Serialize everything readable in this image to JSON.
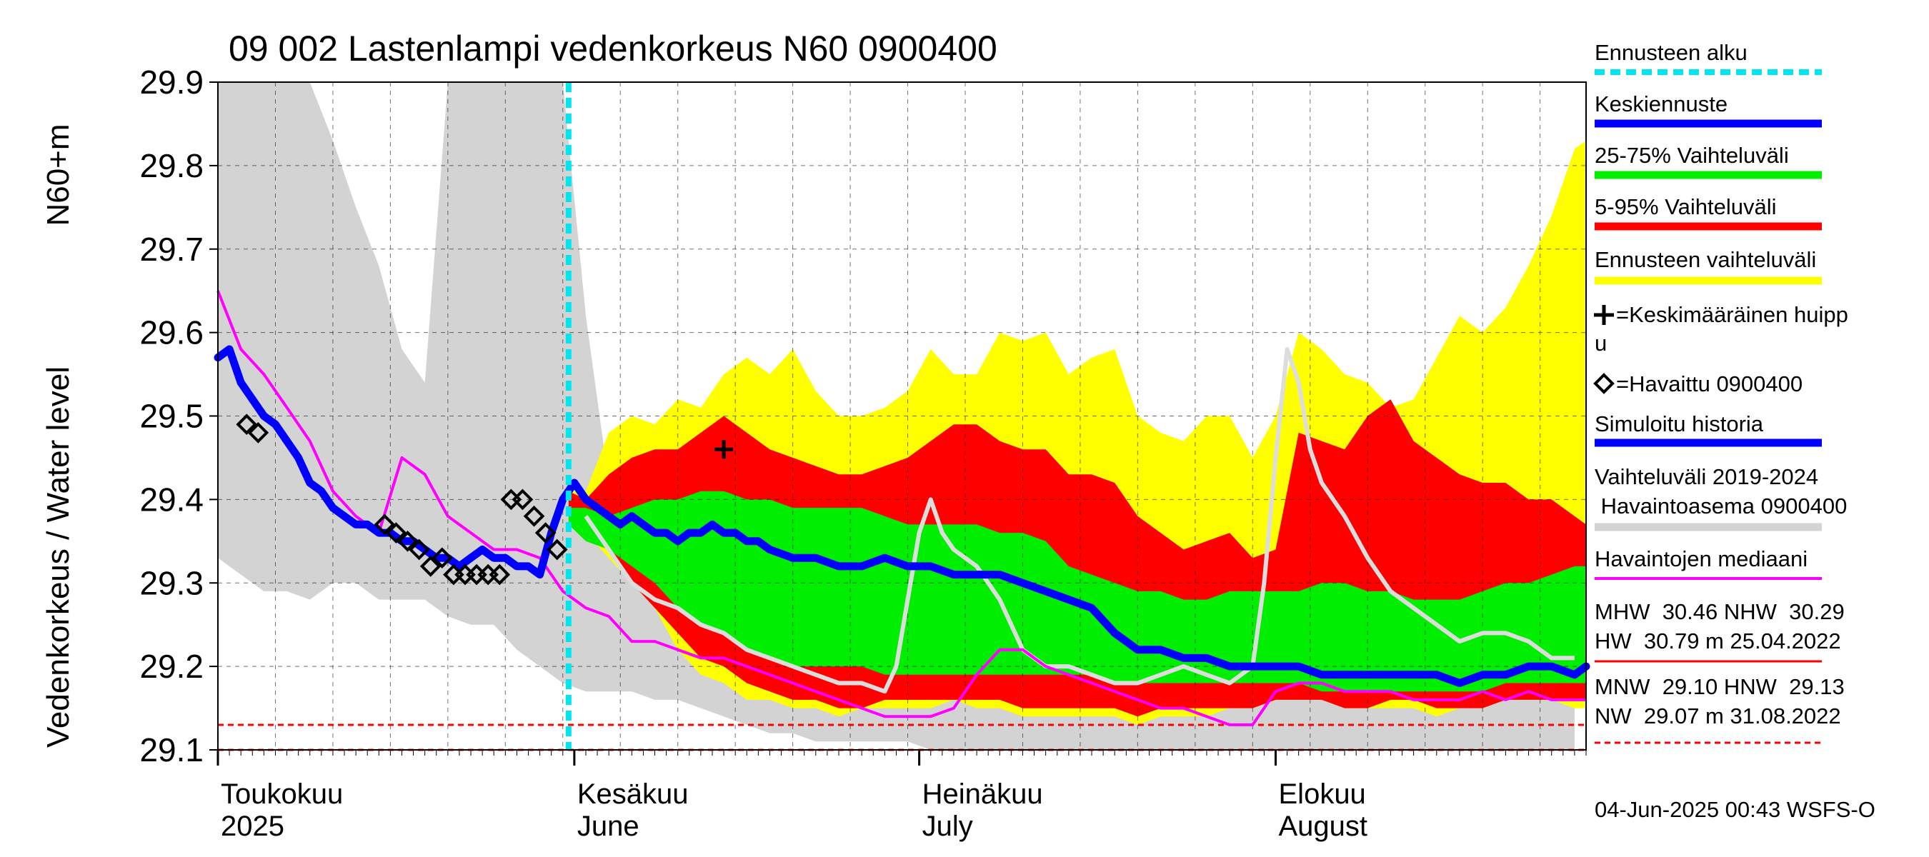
{
  "chart_data": {
    "type": "area",
    "title": "09 002 Lastenlampi vedenkorkeus N60 0900400",
    "ylabel_left": "Vedenkorkeus / Water level",
    "ylabel_right": "N60+m",
    "ylim": [
      29.1,
      29.9
    ],
    "yticks": [
      29.1,
      29.2,
      29.3,
      29.4,
      29.5,
      29.6,
      29.7,
      29.8,
      29.9
    ],
    "ytick_labels": [
      "29.1",
      "29.2",
      "29.3",
      "29.4",
      "29.5",
      "29.6",
      "29.7",
      "29.8",
      "29.9"
    ],
    "xlim": [
      0,
      119
    ],
    "x_unit": "days since 1 May 2025",
    "months": [
      {
        "label1": "Toukokuu",
        "label2": "2025",
        "x": 0
      },
      {
        "label1": "Kesäkuu",
        "label2": "June",
        "x": 31
      },
      {
        "label1": "Heinäkuu",
        "label2": "July",
        "x": 61
      },
      {
        "label1": "Elokuu",
        "label2": "August",
        "x": 92
      }
    ],
    "forecast_start_x": 30.5,
    "bands": {
      "grey": {
        "x": [
          0,
          2,
          4,
          6,
          8,
          10,
          12,
          14,
          16,
          18,
          20,
          22,
          24,
          26,
          28,
          30,
          32,
          34,
          36,
          38,
          40,
          42,
          44,
          46,
          48,
          50,
          52,
          54,
          56,
          58,
          60,
          62,
          64,
          66,
          68,
          70,
          72,
          74,
          76,
          78,
          80,
          82,
          84,
          86,
          88,
          90,
          92,
          94,
          96,
          98,
          100,
          102,
          104,
          106,
          108,
          110,
          112,
          114,
          116,
          118
        ],
        "upper": [
          29.9,
          29.9,
          29.9,
          29.9,
          29.9,
          29.83,
          29.75,
          29.68,
          29.58,
          29.54,
          29.9,
          29.9,
          29.9,
          29.9,
          29.9,
          29.9,
          29.62,
          29.42,
          29.36,
          29.34,
          29.32,
          29.3,
          29.28,
          29.27,
          29.26,
          29.25,
          29.23,
          29.22,
          29.22,
          29.21,
          29.2,
          29.2,
          29.19,
          29.19,
          29.19,
          29.18,
          29.18,
          29.18,
          29.17,
          29.17,
          29.17,
          29.17,
          29.17,
          29.17,
          29.17,
          29.17,
          29.17,
          29.17,
          29.17,
          29.17,
          29.17,
          29.17,
          29.17,
          29.17,
          29.17,
          29.17,
          29.17,
          29.17,
          29.17,
          29.17
        ],
        "lower": [
          29.33,
          29.31,
          29.29,
          29.29,
          29.28,
          29.3,
          29.3,
          29.28,
          29.28,
          29.28,
          29.26,
          29.25,
          29.25,
          29.22,
          29.2,
          29.18,
          29.17,
          29.17,
          29.17,
          29.16,
          29.16,
          29.15,
          29.14,
          29.13,
          29.12,
          29.12,
          29.11,
          29.11,
          29.11,
          29.11,
          29.11,
          29.1,
          29.1,
          29.1,
          29.1,
          29.1,
          29.1,
          29.1,
          29.1,
          29.1,
          29.1,
          29.1,
          29.1,
          29.1,
          29.1,
          29.1,
          29.1,
          29.1,
          29.1,
          29.1,
          29.1,
          29.1,
          29.1,
          29.1,
          29.1,
          29.1,
          29.1,
          29.1,
          29.1,
          29.1
        ]
      },
      "yellow": {
        "x": [
          30.5,
          32,
          34,
          36,
          38,
          40,
          42,
          44,
          46,
          48,
          50,
          52,
          54,
          56,
          58,
          60,
          62,
          64,
          66,
          68,
          70,
          72,
          74,
          76,
          78,
          80,
          82,
          84,
          86,
          88,
          90,
          92,
          94,
          96,
          98,
          100,
          102,
          104,
          106,
          108,
          110,
          112,
          114,
          116,
          118,
          119
        ],
        "upper": [
          29.42,
          29.41,
          29.48,
          29.5,
          29.49,
          29.52,
          29.51,
          29.55,
          29.57,
          29.55,
          29.58,
          29.53,
          29.5,
          29.5,
          29.51,
          29.53,
          29.58,
          29.55,
          29.55,
          29.6,
          29.59,
          29.6,
          29.55,
          29.57,
          29.58,
          29.5,
          29.48,
          29.47,
          29.5,
          29.5,
          29.45,
          29.5,
          29.6,
          29.58,
          29.55,
          29.54,
          29.51,
          29.52,
          29.57,
          29.62,
          29.6,
          29.63,
          29.68,
          29.74,
          29.82,
          29.83
        ],
        "lower": [
          29.39,
          29.36,
          29.33,
          29.3,
          29.27,
          29.22,
          29.19,
          29.18,
          29.16,
          29.16,
          29.15,
          29.15,
          29.14,
          29.15,
          29.15,
          29.15,
          29.15,
          29.16,
          29.15,
          29.15,
          29.14,
          29.14,
          29.14,
          29.14,
          29.14,
          29.13,
          29.14,
          29.14,
          29.14,
          29.15,
          29.15,
          29.16,
          29.16,
          29.16,
          29.15,
          29.15,
          29.15,
          29.15,
          29.14,
          29.15,
          29.16,
          29.16,
          29.16,
          29.16,
          29.15,
          29.15
        ]
      },
      "red": {
        "x": [
          30.5,
          32,
          34,
          36,
          38,
          40,
          42,
          44,
          46,
          48,
          50,
          52,
          54,
          56,
          58,
          60,
          62,
          64,
          66,
          68,
          70,
          72,
          74,
          76,
          78,
          80,
          82,
          84,
          86,
          88,
          90,
          92,
          94,
          96,
          98,
          100,
          102,
          104,
          106,
          108,
          110,
          112,
          114,
          116,
          118,
          119
        ],
        "upper": [
          29.41,
          29.4,
          29.43,
          29.45,
          29.46,
          29.46,
          29.48,
          29.5,
          29.48,
          29.46,
          29.45,
          29.44,
          29.43,
          29.43,
          29.44,
          29.45,
          29.47,
          29.49,
          29.49,
          29.47,
          29.46,
          29.46,
          29.43,
          29.43,
          29.42,
          29.38,
          29.36,
          29.34,
          29.35,
          29.36,
          29.33,
          29.34,
          29.48,
          29.47,
          29.46,
          29.5,
          29.52,
          29.47,
          29.45,
          29.43,
          29.42,
          29.42,
          29.4,
          29.4,
          29.38,
          29.37
        ],
        "lower": [
          29.38,
          29.36,
          29.34,
          29.3,
          29.27,
          29.24,
          29.21,
          29.2,
          29.18,
          29.17,
          29.16,
          29.16,
          29.15,
          29.15,
          29.16,
          29.16,
          29.16,
          29.16,
          29.16,
          29.16,
          29.15,
          29.15,
          29.15,
          29.15,
          29.15,
          29.14,
          29.15,
          29.15,
          29.15,
          29.15,
          29.15,
          29.16,
          29.16,
          29.16,
          29.15,
          29.15,
          29.16,
          29.16,
          29.15,
          29.15,
          29.15,
          29.16,
          29.16,
          29.16,
          29.16,
          29.16
        ]
      },
      "green": {
        "x": [
          30.5,
          32,
          34,
          36,
          38,
          40,
          42,
          44,
          46,
          48,
          50,
          52,
          54,
          56,
          58,
          60,
          62,
          64,
          66,
          68,
          70,
          72,
          74,
          76,
          78,
          80,
          82,
          84,
          86,
          88,
          90,
          92,
          94,
          96,
          98,
          100,
          102,
          104,
          106,
          108,
          110,
          112,
          114,
          116,
          118,
          119
        ],
        "upper": [
          29.39,
          29.39,
          29.38,
          29.39,
          29.4,
          29.4,
          29.41,
          29.41,
          29.4,
          29.4,
          29.39,
          29.39,
          29.39,
          29.39,
          29.38,
          29.37,
          29.37,
          29.37,
          29.37,
          29.36,
          29.36,
          29.35,
          29.32,
          29.31,
          29.3,
          29.29,
          29.29,
          29.28,
          29.28,
          29.29,
          29.29,
          29.29,
          29.29,
          29.3,
          29.3,
          29.29,
          29.29,
          29.28,
          29.28,
          29.28,
          29.29,
          29.3,
          29.3,
          29.31,
          29.32,
          29.32
        ],
        "lower": [
          29.37,
          29.35,
          29.34,
          29.32,
          29.3,
          29.27,
          29.25,
          29.24,
          29.22,
          29.21,
          29.2,
          29.2,
          29.2,
          29.2,
          29.19,
          29.19,
          29.19,
          29.19,
          29.19,
          29.19,
          29.19,
          29.19,
          29.19,
          29.19,
          29.18,
          29.18,
          29.18,
          29.18,
          29.18,
          29.18,
          29.18,
          29.18,
          29.18,
          29.17,
          29.17,
          29.17,
          29.17,
          29.17,
          29.17,
          29.17,
          29.17,
          29.18,
          29.18,
          29.18,
          29.18,
          29.18
        ]
      }
    },
    "series": [
      {
        "name": "Simuloitu historia",
        "x": [
          0,
          1,
          2,
          3,
          4,
          5,
          6,
          7,
          8,
          9,
          10,
          11,
          12,
          13,
          14,
          15,
          16,
          17,
          18,
          19,
          20,
          21,
          22,
          23,
          24,
          25,
          26,
          27,
          28,
          29,
          30,
          31,
          32,
          33,
          34,
          35,
          36,
          37,
          38,
          39,
          40,
          41,
          42,
          43,
          44,
          45,
          46,
          47,
          48,
          50,
          52,
          54,
          56,
          58,
          60,
          62,
          64,
          66,
          68,
          70,
          72,
          74,
          76,
          78,
          80,
          82,
          84,
          86,
          88,
          90,
          92,
          94,
          96,
          98,
          100,
          102,
          104,
          106,
          108,
          110,
          112,
          114,
          116,
          118,
          119
        ],
        "y": [
          29.57,
          29.58,
          29.54,
          29.52,
          29.5,
          29.49,
          29.47,
          29.45,
          29.42,
          29.41,
          29.39,
          29.38,
          29.37,
          29.37,
          29.36,
          29.36,
          29.35,
          29.35,
          29.34,
          29.33,
          29.33,
          29.32,
          29.33,
          29.34,
          29.33,
          29.33,
          29.32,
          29.32,
          29.31,
          29.36,
          29.4,
          29.42,
          29.4,
          29.39,
          29.38,
          29.37,
          29.38,
          29.37,
          29.36,
          29.36,
          29.35,
          29.36,
          29.36,
          29.37,
          29.36,
          29.36,
          29.35,
          29.35,
          29.34,
          29.33,
          29.33,
          29.32,
          29.32,
          29.33,
          29.32,
          29.32,
          29.31,
          29.31,
          29.31,
          29.3,
          29.29,
          29.28,
          29.27,
          29.24,
          29.22,
          29.22,
          29.21,
          29.21,
          29.2,
          29.2,
          29.2,
          29.2,
          29.19,
          29.19,
          29.19,
          29.19,
          29.19,
          29.19,
          29.18,
          29.19,
          29.19,
          29.2,
          29.2,
          29.19,
          29.2
        ]
      },
      {
        "name": "Havaintojen mediaani",
        "x": [
          0,
          2,
          4,
          6,
          8,
          10,
          12,
          14,
          16,
          18,
          20,
          22,
          24,
          26,
          28,
          30,
          32,
          34,
          36,
          38,
          40,
          42,
          44,
          46,
          48,
          50,
          52,
          54,
          56,
          58,
          60,
          62,
          64,
          66,
          68,
          70,
          72,
          74,
          76,
          78,
          80,
          82,
          84,
          86,
          88,
          90,
          92,
          94,
          96,
          98,
          100,
          102,
          104,
          106,
          108,
          110,
          112,
          114,
          116,
          118,
          119
        ],
        "y": [
          29.65,
          29.58,
          29.55,
          29.51,
          29.47,
          29.41,
          29.38,
          29.36,
          29.45,
          29.43,
          29.38,
          29.36,
          29.34,
          29.34,
          29.33,
          29.29,
          29.27,
          29.26,
          29.23,
          29.23,
          29.22,
          29.21,
          29.21,
          29.2,
          29.19,
          29.18,
          29.17,
          29.16,
          29.15,
          29.14,
          29.14,
          29.14,
          29.15,
          29.19,
          29.22,
          29.22,
          29.2,
          29.19,
          29.18,
          29.17,
          29.16,
          29.15,
          29.15,
          29.14,
          29.13,
          29.13,
          29.17,
          29.18,
          29.18,
          29.17,
          29.17,
          29.17,
          29.16,
          29.16,
          29.16,
          29.17,
          29.16,
          29.17,
          29.16,
          29.16,
          29.16
        ]
      },
      {
        "name": "Vaihteluväli 2019-2024 Havaintoasema 0900400 (mid)",
        "x": [
          32,
          34,
          36,
          38,
          40,
          42,
          44,
          46,
          48,
          50,
          52,
          54,
          56,
          58,
          59,
          60,
          61,
          62,
          63,
          64,
          66,
          68,
          70,
          72,
          74,
          76,
          78,
          80,
          82,
          84,
          86,
          88,
          90,
          91,
          92,
          93,
          94,
          95,
          96,
          98,
          100,
          102,
          104,
          106,
          108,
          110,
          112,
          114,
          116,
          118
        ],
        "y": [
          29.38,
          29.34,
          29.3,
          29.28,
          29.27,
          29.25,
          29.24,
          29.22,
          29.21,
          29.2,
          29.19,
          29.18,
          29.18,
          29.17,
          29.2,
          29.28,
          29.36,
          29.4,
          29.36,
          29.34,
          29.32,
          29.28,
          29.22,
          29.2,
          29.2,
          29.19,
          29.18,
          29.18,
          29.19,
          29.2,
          29.19,
          29.18,
          29.2,
          29.3,
          29.45,
          29.58,
          29.54,
          29.46,
          29.42,
          29.38,
          29.33,
          29.29,
          29.27,
          29.25,
          29.23,
          29.24,
          29.24,
          29.23,
          29.21,
          29.21
        ]
      }
    ],
    "observations": {
      "x": [
        2.5,
        3.5,
        14.5,
        15.5,
        16.5,
        17.5,
        18.5,
        19.5,
        20.5,
        21.5,
        22.5,
        23.5,
        24.5,
        25.5,
        26.5,
        27.5,
        28.5,
        29.5
      ],
      "y": [
        29.49,
        29.48,
        29.37,
        29.36,
        29.35,
        29.34,
        29.32,
        29.33,
        29.31,
        29.31,
        29.31,
        29.31,
        29.31,
        29.4,
        29.4,
        29.38,
        29.36,
        29.34
      ]
    },
    "mean_peak": {
      "x": 44,
      "y": 29.46
    },
    "ref_lines": [
      {
        "y": 29.13,
        "color": "#ff0000",
        "dash": true
      },
      {
        "y": 29.1,
        "color": "#ff0000",
        "dash": true
      }
    ],
    "colors": {
      "grey_band": "#d3d3d3",
      "yellow_band": "#ffff00",
      "red_band": "#ff0000",
      "green_band": "#00ee00",
      "forecast_start": "#00e5ee",
      "simulated": "#0000ff",
      "median": "#ff00ff",
      "grey_line": "#dddddd"
    },
    "legend": {
      "ennusteen_alku": "Ennusteen alku",
      "keskiennuste": "Keskiennuste",
      "vaihteluvali_25_75": "25-75% Vaihteluväli",
      "vaihteluvali_5_95": "5-95% Vaihteluväli",
      "ennusteen_vaihteluvali": "Ennusteen vaihteluväli",
      "keskimaarainen_huippu_1": "=Keskimääräinen huipp",
      "keskimaarainen_huippu_2": "u",
      "havaittu": "=Havaittu 0900400",
      "simuloitu_historia": "Simuloitu historia",
      "vaihteluvali_2019_2024_1": "Vaihteluväli 2019-2024",
      "vaihteluvali_2019_2024_2": " Havaintoasema 0900400",
      "havaintojen_mediaani": "Havaintojen mediaani",
      "stats_1": "MHW  30.46 NHW  30.29",
      "stats_2": "HW  30.79 m 25.04.2022",
      "stats_3": "MNW  29.10 HNW  29.13",
      "stats_4": "NW  29.07 m 31.08.2022"
    },
    "timestamp": "04-Jun-2025 00:43 WSFS-O"
  }
}
